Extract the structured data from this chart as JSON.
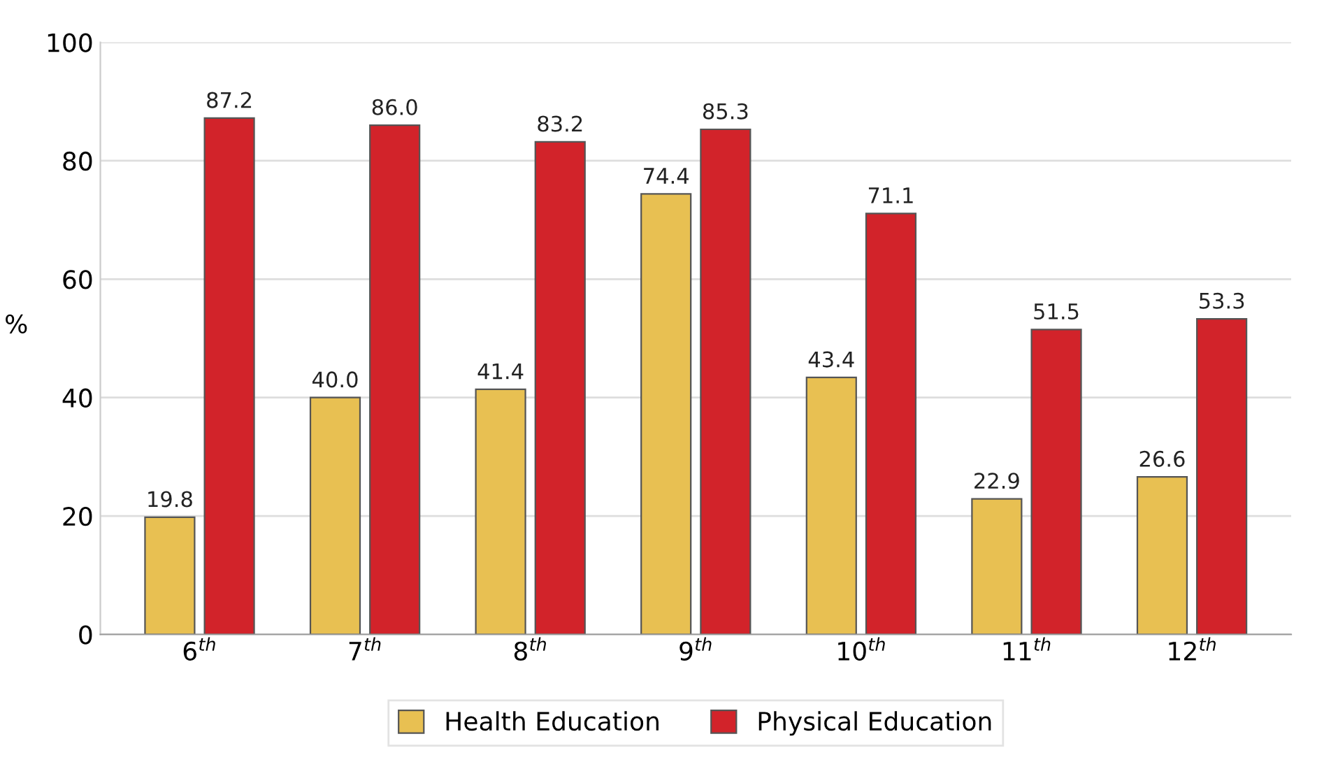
{
  "chart_data": {
    "type": "bar",
    "categories": [
      "6$^{th}$",
      "7$^{th}$",
      "8$^{th}$",
      "9$^{th}$",
      "10$^{th}$",
      "11$^{th}$",
      "12$^{th}$"
    ],
    "series": [
      {
        "name": "Health Education",
        "color": "#e8c052",
        "values": [
          19.8,
          40.0,
          41.4,
          74.4,
          43.4,
          22.9,
          26.6
        ],
        "value_labels": [
          "19.8",
          "40.0",
          "41.4",
          "74.4",
          "43.4",
          "22.9",
          "26.6"
        ]
      },
      {
        "name": "Physical Education",
        "color": "#d2232a",
        "values": [
          87.2,
          86.0,
          83.2,
          85.3,
          71.1,
          51.5,
          53.3
        ],
        "value_labels": [
          "87.2",
          "86.0",
          "83.2",
          "85.3",
          "71.1",
          "51.5",
          "53.3"
        ]
      }
    ],
    "ylabel": "%",
    "ylim": [
      0,
      100
    ],
    "yticks": [
      0,
      20,
      40,
      60,
      80,
      100
    ],
    "grid": "y",
    "legend": "bottom"
  }
}
